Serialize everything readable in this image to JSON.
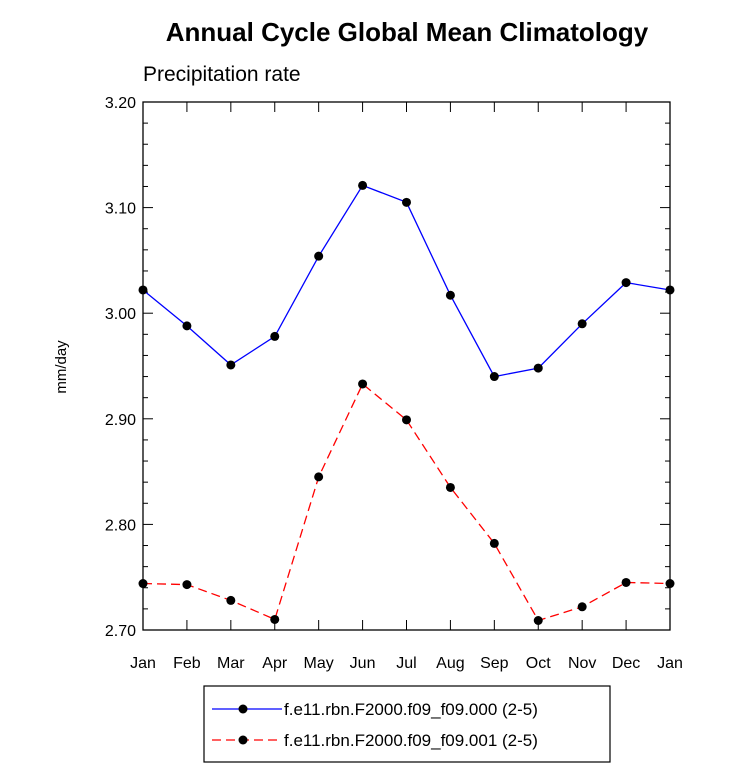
{
  "chart_data": {
    "type": "line",
    "title": "Annual Cycle Global Mean Climatology",
    "subtitle": "Precipitation rate",
    "xlabel": "",
    "ylabel": "mm/day",
    "categories": [
      "Jan",
      "Feb",
      "Mar",
      "Apr",
      "May",
      "Jun",
      "Jul",
      "Aug",
      "Sep",
      "Oct",
      "Nov",
      "Dec",
      "Jan"
    ],
    "ylim": [
      2.7,
      3.2
    ],
    "yticks": [
      "2.70",
      "2.80",
      "2.90",
      "3.00",
      "3.10",
      "3.20"
    ],
    "ytick_values": [
      2.7,
      2.8,
      2.9,
      3.0,
      3.1,
      3.2
    ],
    "grid": false,
    "legend_position": "bottom",
    "series": [
      {
        "name": "f.e11.rbn.F2000.f09_f09.000 (2-5)",
        "color": "#0000ff",
        "line_style": "solid",
        "marker": "filled-circle",
        "values": [
          3.022,
          2.988,
          2.951,
          2.978,
          3.054,
          3.121,
          3.105,
          3.017,
          2.94,
          2.948,
          2.99,
          3.029,
          3.022
        ]
      },
      {
        "name": "f.e11.rbn.F2000.f09_f09.001 (2-5)",
        "color": "#ff0000",
        "line_style": "dashed",
        "marker": "filled-circle",
        "values": [
          2.744,
          2.743,
          2.728,
          2.71,
          2.845,
          2.933,
          2.899,
          2.835,
          2.782,
          2.709,
          2.722,
          2.745,
          2.744
        ]
      }
    ]
  }
}
